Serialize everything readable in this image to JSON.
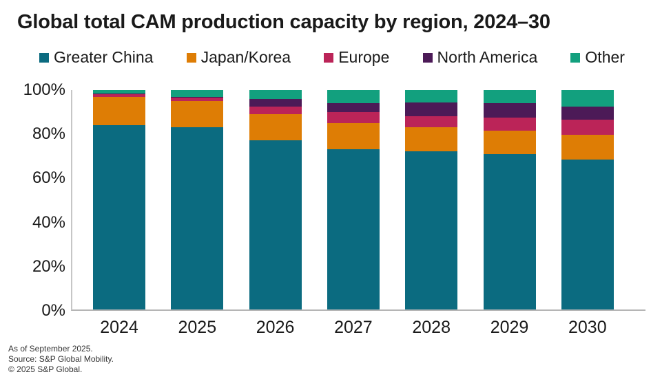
{
  "title": "Global total CAM production capacity by region, 2024–30",
  "chart_data": {
    "type": "bar",
    "stacked": true,
    "unit": "percent",
    "title": "Global total CAM production capacity by region, 2024–30",
    "categories": [
      "2024",
      "2025",
      "2026",
      "2027",
      "2028",
      "2029",
      "2030"
    ],
    "series": [
      {
        "name": "Greater China",
        "color": "#0B6B80",
        "values": [
          84,
          83,
          77,
          73,
          72,
          71,
          68.5
        ]
      },
      {
        "name": "Japan/Korea",
        "color": "#DE7D05",
        "values": [
          13,
          12,
          12,
          12,
          11,
          10.5,
          11
        ]
      },
      {
        "name": "Europe",
        "color": "#BB2458",
        "values": [
          1,
          1.5,
          3.5,
          5,
          5,
          6,
          7
        ]
      },
      {
        "name": "North America",
        "color": "#4C1A57",
        "values": [
          0.5,
          0.5,
          3.5,
          4,
          6.5,
          6.5,
          6
        ]
      },
      {
        "name": "Other",
        "color": "#12A07E",
        "values": [
          1.5,
          3,
          4,
          6,
          5.5,
          6,
          7.5
        ]
      }
    ],
    "y_ticks": [
      {
        "label": "100%",
        "value": 100
      },
      {
        "label": "80%",
        "value": 80
      },
      {
        "label": "60%",
        "value": 60
      },
      {
        "label": "40%",
        "value": 40
      },
      {
        "label": "20%",
        "value": 20
      },
      {
        "label": "0%",
        "value": 0
      }
    ],
    "ylim": [
      0,
      100
    ],
    "gridlines": false,
    "legend_position": "top"
  },
  "footer": {
    "lines": [
      "As of September 2025.",
      "Source: S&P Global Mobility.",
      "© 2025 S&P Global."
    ]
  }
}
